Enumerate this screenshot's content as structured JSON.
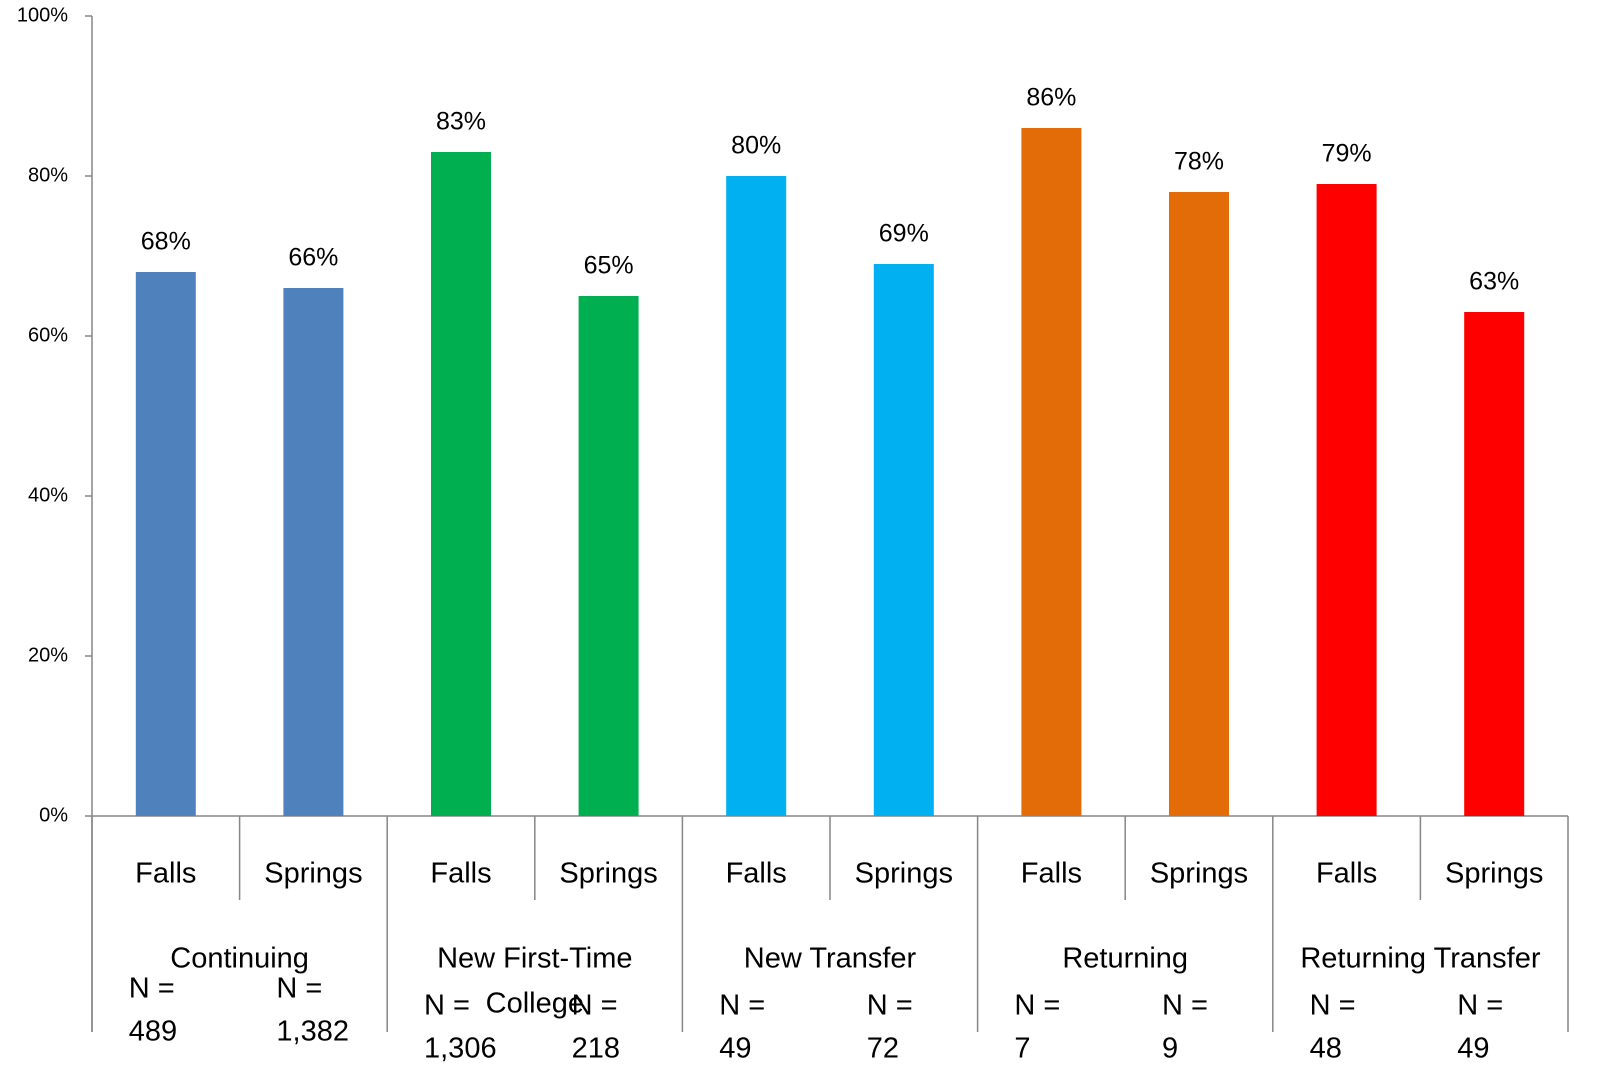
{
  "chart_data": {
    "type": "bar",
    "categories": [
      "Falls",
      "Springs",
      "Falls",
      "Springs",
      "Falls",
      "Springs",
      "Falls",
      "Springs",
      "Falls",
      "Springs"
    ],
    "values": [
      68,
      66,
      83,
      65,
      80,
      69,
      86,
      78,
      79,
      63
    ],
    "value_labels": [
      "68%",
      "66%",
      "83%",
      "65%",
      "80%",
      "69%",
      "86%",
      "78%",
      "79%",
      "63%"
    ],
    "colors": [
      "#4f81bd",
      "#4f81bd",
      "#00b050",
      "#00b050",
      "#00b0f0",
      "#00b0f0",
      "#e36c09",
      "#e36c09",
      "#ff0000",
      "#ff0000"
    ],
    "groups": [
      {
        "name": [
          "Continuing"
        ],
        "n_labels": [
          [
            "N =",
            "489"
          ],
          [
            "N =",
            "1,382"
          ]
        ]
      },
      {
        "name": [
          "New First-Time",
          "College"
        ],
        "n_labels": [
          [
            "N =",
            "1,306"
          ],
          [
            "N =",
            "218"
          ]
        ]
      },
      {
        "name": [
          "New Transfer"
        ],
        "n_labels": [
          [
            "N =",
            "49"
          ],
          [
            "N =",
            "72"
          ]
        ]
      },
      {
        "name": [
          "Returning"
        ],
        "n_labels": [
          [
            "N =",
            "7"
          ],
          [
            "N =",
            "9"
          ]
        ]
      },
      {
        "name": [
          "Returning Transfer"
        ],
        "n_labels": [
          [
            "N =",
            "48"
          ],
          [
            "N =",
            "49"
          ]
        ]
      }
    ],
    "ylim": [
      0,
      100
    ],
    "yticks": [
      {
        "value": 0,
        "label": "0%"
      },
      {
        "value": 20,
        "label": "20%"
      },
      {
        "value": 40,
        "label": "40%"
      },
      {
        "value": 60,
        "label": "60%"
      },
      {
        "value": 80,
        "label": "80%"
      },
      {
        "value": 100,
        "label": "100%"
      }
    ],
    "grid": false
  }
}
